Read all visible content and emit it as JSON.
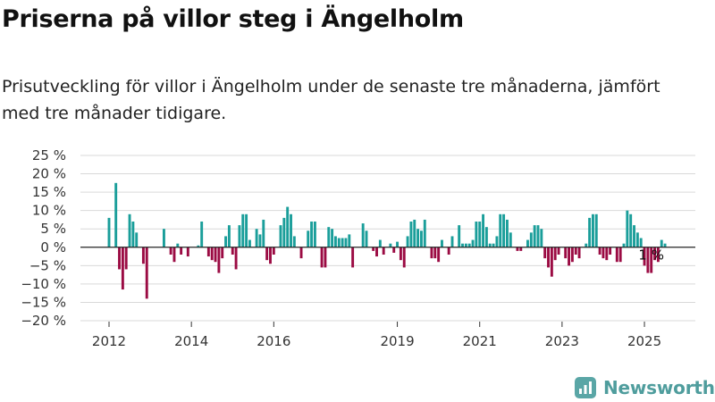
{
  "title": "Priserna på villor steg i Ängelholm",
  "subtitle": "Prisutveckling för villor i Ängelholm under de senaste tre månaderna, jämfört med tre månader tidigare.",
  "brand": "Newsworthy",
  "colors": {
    "positive": "#1a9e9a",
    "negative": "#9b0b43",
    "grid": "#d9d9d9",
    "zero_line": "#222222"
  },
  "chart_data": {
    "type": "bar",
    "ylim": [
      -20,
      25
    ],
    "yticks": [
      25,
      20,
      15,
      10,
      5,
      0,
      -5,
      -10,
      -15,
      -20
    ],
    "ytick_labels": [
      "25 %",
      "20 %",
      "15 %",
      "10 %",
      "5 %",
      "0 %",
      "−5 %",
      "−10 %",
      "−15 %",
      "−20 %"
    ],
    "xticks": [
      "2012",
      "2014",
      "2016",
      "2019",
      "2021",
      "2023",
      "2025"
    ],
    "xtick_index": [
      0,
      24,
      48,
      84,
      108,
      132,
      156
    ],
    "grid": true,
    "annotation": {
      "text": "1 %",
      "index": 158
    },
    "values": [
      8,
      0,
      17.5,
      -6,
      -11.5,
      -6,
      9,
      7,
      4,
      0,
      -4.5,
      -14,
      0,
      0,
      0,
      0,
      5,
      0,
      -2,
      -4,
      1,
      -2,
      0,
      -2.5,
      0,
      0,
      0.5,
      7,
      0,
      -2.5,
      -3.5,
      -4,
      -7,
      -3,
      3,
      6,
      -2,
      -6,
      6,
      9,
      9,
      2,
      0,
      5,
      3.5,
      7.5,
      -3.5,
      -4.5,
      -2,
      0,
      6,
      8,
      11,
      9,
      3,
      0,
      -3,
      0,
      4.5,
      7,
      7,
      0,
      -5.5,
      -5.5,
      5.5,
      5,
      3,
      2.5,
      2.5,
      2.5,
      3.5,
      -5.5,
      0,
      0,
      6.5,
      4.5,
      0,
      -1,
      -2.5,
      2,
      -2,
      0,
      1,
      -1.5,
      1.5,
      -3.5,
      -5.5,
      3,
      7,
      7.5,
      5,
      4.5,
      7.5,
      0,
      -3,
      -3,
      -4,
      2,
      0,
      -2,
      3,
      0,
      6,
      1,
      1,
      1,
      2,
      7,
      7,
      9,
      5.5,
      1,
      1,
      3,
      9,
      9,
      7.5,
      4,
      0,
      -1,
      -1,
      0,
      2,
      4,
      6,
      6,
      5,
      -3,
      -5.5,
      -8,
      -3.5,
      -2,
      0,
      -3,
      -5,
      -4,
      -2,
      -3,
      0,
      1,
      8,
      9,
      9,
      -2,
      -3,
      -3.5,
      -2,
      0,
      -4,
      -4,
      1,
      10,
      9,
      6,
      4,
      2.5,
      -5,
      -7,
      -7,
      -3.5,
      -4,
      2,
      1
    ]
  }
}
